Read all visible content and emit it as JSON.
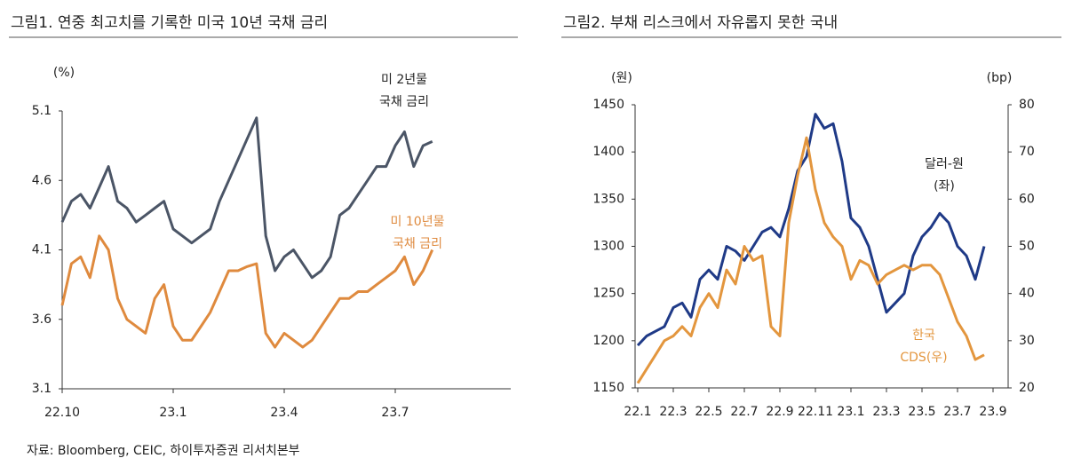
{
  "chart_data": [
    {
      "type": "line",
      "title": "그림1.  연중 최고치를 기록한 미국 10년 국채 금리",
      "y_unit": "(%)",
      "x_labels": [
        "22.10",
        "23.1",
        "23.4",
        "23.7"
      ],
      "ylim": [
        3.1,
        5.1
      ],
      "yticks": [
        3.1,
        3.6,
        4.1,
        4.6,
        5.1
      ],
      "series": [
        {
          "name_lines": [
            "미 2년물",
            "국채 금리"
          ],
          "color": "#4b5566",
          "values": [
            4.3,
            4.45,
            4.5,
            4.4,
            4.55,
            4.7,
            4.45,
            4.4,
            4.3,
            4.35,
            4.4,
            4.45,
            4.25,
            4.2,
            4.15,
            4.2,
            4.25,
            4.45,
            4.6,
            4.75,
            4.9,
            5.05,
            4.2,
            3.95,
            4.05,
            4.1,
            4.0,
            3.9,
            3.95,
            4.05,
            4.35,
            4.4,
            4.5,
            4.6,
            4.7,
            4.7,
            4.85,
            4.95,
            4.7,
            4.85,
            4.88
          ]
        },
        {
          "name_lines": [
            "미 10년물",
            "국채 금리"
          ],
          "color": "#df8a3e",
          "values": [
            3.7,
            4.0,
            4.05,
            3.9,
            4.2,
            4.1,
            3.75,
            3.6,
            3.55,
            3.5,
            3.75,
            3.85,
            3.55,
            3.45,
            3.45,
            3.55,
            3.65,
            3.8,
            3.95,
            3.95,
            3.98,
            4.0,
            3.5,
            3.4,
            3.5,
            3.45,
            3.4,
            3.45,
            3.55,
            3.65,
            3.75,
            3.75,
            3.8,
            3.8,
            3.85,
            3.9,
            3.95,
            4.05,
            3.85,
            3.95,
            4.1
          ]
        }
      ]
    },
    {
      "type": "line",
      "title": "그림2.  부채 리스크에서 자유롭지 못한 국내",
      "y_unit": "(원)",
      "y2_unit": "(bp)",
      "x_labels": [
        "22.1",
        "22.3",
        "22.5",
        "22.7",
        "22.9",
        "22.11",
        "23.1",
        "23.3",
        "23.5",
        "23.7",
        "23.9"
      ],
      "ylim": [
        1150,
        1450
      ],
      "yticks": [
        1150,
        1200,
        1250,
        1300,
        1350,
        1400,
        1450
      ],
      "y2lim": [
        20,
        80
      ],
      "y2ticks": [
        20,
        30,
        40,
        50,
        60,
        70,
        80
      ],
      "series": [
        {
          "name_lines": [
            "달러-원",
            "(좌)"
          ],
          "color": "#1f3a87",
          "values": [
            1195,
            1205,
            1210,
            1215,
            1235,
            1240,
            1225,
            1265,
            1275,
            1265,
            1300,
            1295,
            1285,
            1300,
            1315,
            1320,
            1310,
            1340,
            1380,
            1395,
            1440,
            1425,
            1430,
            1390,
            1330,
            1320,
            1300,
            1265,
            1230,
            1240,
            1250,
            1290,
            1310,
            1320,
            1335,
            1325,
            1300,
            1290,
            1265,
            1300
          ]
        },
        {
          "name_lines": [
            "한국",
            "CDS(우)"
          ],
          "color": "#e3963e",
          "axis": "y2",
          "values": [
            21,
            24,
            27,
            30,
            31,
            33,
            31,
            37,
            40,
            37,
            45,
            42,
            50,
            47,
            48,
            33,
            31,
            55,
            65,
            73,
            62,
            55,
            52,
            50,
            43,
            47,
            46,
            42,
            44,
            45,
            46,
            45,
            46,
            46,
            44,
            39,
            34,
            31,
            26,
            27
          ]
        }
      ]
    }
  ],
  "source": "자료: Bloomberg, CEIC, 하이투자증권 리서치본부"
}
